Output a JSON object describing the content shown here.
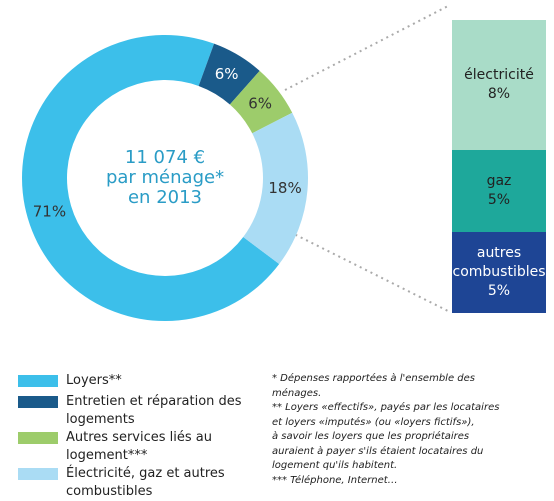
{
  "chart_data": [
    {
      "type": "donut",
      "center_text": [
        "11 074 €",
        "par ménage*",
        "en 2013"
      ],
      "categories": [
        "Loyers**",
        "Entretien et réparation des logements",
        "Autres services liés au logement***",
        "Électricité, gaz et autres combustibles"
      ],
      "values": [
        71,
        6,
        6,
        18
      ],
      "value_labels": [
        "71%",
        "6%",
        "6%",
        "18%"
      ],
      "colors": [
        "#3cbfea",
        "#1a5a8a",
        "#9dcc6b",
        "#aadcf4"
      ]
    },
    {
      "type": "stacked-bar",
      "categories": [
        "électricité",
        "gaz",
        "autres combustibles"
      ],
      "values": [
        8,
        5,
        5
      ],
      "value_labels": [
        "8%",
        "5%",
        "5%"
      ],
      "colors": [
        "#a9dcc8",
        "#1ea89b",
        "#1e4595"
      ]
    }
  ],
  "notes": [
    "* Dépenses rapportées à l'ensemble des",
    "ménages.",
    "** Loyers «effectifs», payés par les locataires",
    "et loyers «imputés» (ou «loyers fictifs»),",
    "à savoir les loyers que les propriétaires",
    "auraient à payer s'ils étaient locataires du",
    "logement qu'ils habitent.",
    "*** Téléphone, Internet…"
  ]
}
